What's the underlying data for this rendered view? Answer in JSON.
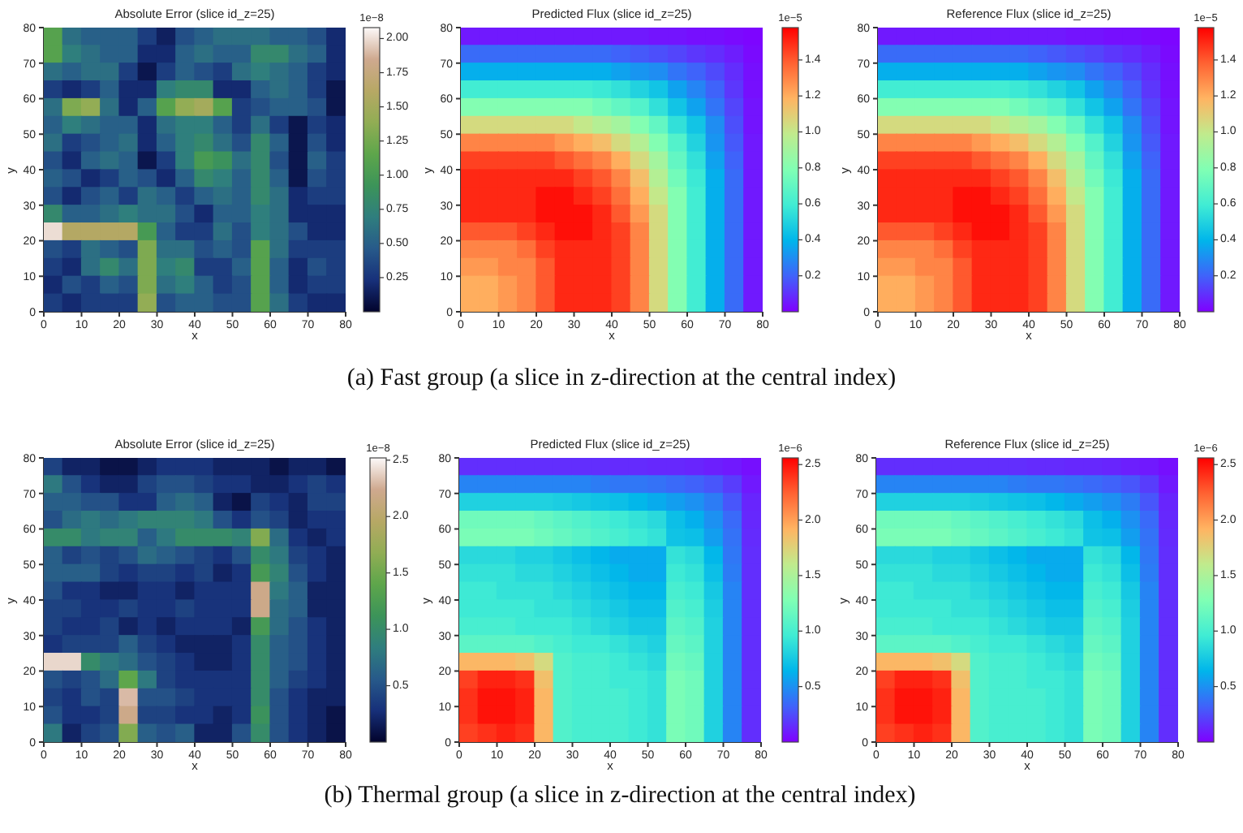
{
  "chart_data": [
    {
      "type": "heatmap",
      "title": "Absolute Error (slice id_z=25)",
      "xlabel": "x",
      "ylabel": "y",
      "xlim": [
        0,
        80
      ],
      "ylim": [
        0,
        80
      ],
      "xticks": [
        0,
        10,
        20,
        30,
        40,
        50,
        60,
        70,
        80
      ],
      "yticks": [
        0,
        10,
        20,
        30,
        40,
        50,
        60,
        70,
        80
      ],
      "clabel": "1e−8",
      "clim": [
        0,
        2.08
      ],
      "cticks": [
        0.25,
        {
          "value": 0.5,
          "label": "0.50"
        },
        0.75,
        {
          "value": 1,
          "label": "1.00"
        },
        1.25,
        {
          "value": 1.5,
          "label": "1.50"
        },
        1.75,
        {
          "value": 2,
          "label": "2.00"
        }
      ],
      "colors": [
        "#02032c",
        "#17307a",
        "#275a8a",
        "#2f7e7e",
        "#3c9459",
        "#5ea64b",
        "#91ad54",
        "#b7a865",
        "#cfa98f",
        "#fcf9f9"
      ],
      "cells": [
        [
          1.1,
          0.6,
          0.5,
          0.5,
          0.5,
          0.3,
          0.15,
          0.4,
          0.5,
          0.6,
          0.6,
          0.6,
          0.5,
          0.5,
          0.4,
          0.2
        ],
        [
          1.1,
          0.7,
          0.6,
          0.5,
          0.5,
          0.2,
          0.2,
          0.5,
          0.6,
          0.5,
          0.5,
          0.8,
          0.8,
          0.6,
          0.5,
          0.2
        ],
        [
          0.6,
          0.5,
          0.6,
          0.6,
          0.3,
          0.1,
          0.3,
          0.5,
          0.4,
          0.3,
          0.6,
          0.7,
          0.6,
          0.5,
          0.3,
          0.2
        ],
        [
          0.3,
          0.2,
          0.3,
          0.5,
          0.2,
          0.2,
          0.7,
          0.8,
          0.8,
          0.2,
          0.2,
          0.5,
          0.6,
          0.5,
          0.3,
          0.1
        ],
        [
          0.6,
          1.3,
          1.4,
          0.6,
          0.2,
          0.5,
          1.1,
          1.4,
          1.5,
          1.1,
          0.3,
          0.4,
          0.5,
          0.5,
          0.4,
          0.1
        ],
        [
          0.5,
          0.7,
          0.6,
          0.5,
          0.5,
          0.2,
          0.6,
          0.7,
          0.7,
          0.5,
          0.3,
          0.6,
          0.3,
          0.1,
          0.3,
          0.2
        ],
        [
          0.6,
          0.3,
          0.4,
          0.5,
          0.6,
          0.2,
          0.5,
          0.7,
          0.8,
          0.6,
          0.4,
          0.8,
          0.5,
          0.1,
          0.4,
          0.2
        ],
        [
          0.4,
          0.2,
          0.5,
          0.6,
          0.5,
          0.1,
          0.3,
          0.7,
          1.0,
          0.9,
          0.6,
          0.8,
          0.4,
          0.1,
          0.5,
          0.3
        ],
        [
          0.5,
          0.4,
          0.2,
          0.3,
          0.5,
          0.4,
          0.2,
          0.5,
          0.8,
          0.7,
          0.5,
          0.8,
          0.5,
          0.1,
          0.4,
          0.3
        ],
        [
          0.4,
          0.2,
          0.4,
          0.5,
          0.3,
          0.6,
          0.5,
          0.3,
          0.5,
          0.6,
          0.5,
          0.8,
          0.6,
          0.2,
          0.3,
          0.3
        ],
        [
          0.8,
          0.5,
          0.5,
          0.6,
          0.7,
          0.6,
          0.6,
          0.4,
          0.2,
          0.5,
          0.5,
          0.7,
          0.6,
          0.2,
          0.2,
          0.2
        ],
        [
          2.0,
          1.6,
          1.6,
          1.6,
          1.6,
          1.0,
          0.5,
          0.3,
          0.3,
          0.6,
          0.4,
          0.7,
          0.6,
          0.4,
          0.2,
          0.2
        ],
        [
          0.4,
          0.3,
          0.6,
          0.5,
          0.4,
          1.3,
          0.6,
          0.6,
          0.4,
          0.5,
          0.4,
          1.1,
          0.6,
          0.3,
          0.3,
          0.3
        ],
        [
          0.3,
          0.2,
          0.6,
          0.8,
          0.6,
          1.3,
          0.7,
          0.8,
          0.3,
          0.3,
          0.5,
          1.1,
          0.5,
          0.2,
          0.4,
          0.3
        ],
        [
          0.2,
          0.4,
          0.3,
          0.5,
          0.4,
          1.3,
          0.6,
          0.7,
          0.5,
          0.3,
          0.4,
          1.1,
          0.5,
          0.2,
          0.3,
          0.3
        ],
        [
          0.3,
          0.2,
          0.3,
          0.3,
          0.3,
          1.4,
          0.4,
          0.5,
          0.5,
          0.4,
          0.4,
          1.1,
          0.6,
          0.3,
          0.2,
          0.2
        ]
      ]
    },
    {
      "type": "heatmap",
      "title": "Predicted Flux (slice id_z=25)",
      "xlabel": "x",
      "ylabel": "y",
      "xlim": [
        0,
        80
      ],
      "ylim": [
        0,
        80
      ],
      "xticks": [
        0,
        10,
        20,
        30,
        40,
        50,
        60,
        70,
        80
      ],
      "yticks": [
        0,
        10,
        20,
        30,
        40,
        50,
        60,
        70,
        80
      ],
      "clabel": "1e−5",
      "clim": [
        0,
        1.58
      ],
      "cticks": [
        0.2,
        0.4,
        0.6,
        0.8,
        {
          "value": 1,
          "label": "1.0"
        },
        1.2,
        1.4
      ],
      "colors": [
        "#8000ff",
        "#4062fa",
        "#00b5eb",
        "#40ecd4",
        "#80ffb4",
        "#c0eb8d",
        "#ffb462",
        "#ff6232",
        "#ff0000"
      ],
      "annotations": [
        "(a) Fast group (a slice in z-direction at the central index)"
      ],
      "cells": [
        [
          0.05,
          0.05,
          0.05,
          0.05,
          0.05,
          0.05,
          0.05,
          0.05,
          0.05,
          0.05,
          0.04,
          0.04,
          0.03,
          0.03,
          0.02,
          0.01
        ],
        [
          0.22,
          0.22,
          0.22,
          0.22,
          0.22,
          0.22,
          0.22,
          0.22,
          0.2,
          0.18,
          0.16,
          0.14,
          0.11,
          0.09,
          0.06,
          0.02
        ],
        [
          0.38,
          0.38,
          0.38,
          0.38,
          0.38,
          0.38,
          0.38,
          0.38,
          0.35,
          0.32,
          0.3,
          0.24,
          0.2,
          0.15,
          0.09,
          0.03
        ],
        [
          0.6,
          0.6,
          0.6,
          0.6,
          0.6,
          0.6,
          0.6,
          0.58,
          0.55,
          0.5,
          0.45,
          0.35,
          0.28,
          0.2,
          0.11,
          0.03
        ],
        [
          0.8,
          0.8,
          0.8,
          0.8,
          0.8,
          0.8,
          0.8,
          0.75,
          0.7,
          0.65,
          0.55,
          0.45,
          0.35,
          0.24,
          0.14,
          0.04
        ],
        [
          1.05,
          1.05,
          1.05,
          1.05,
          1.05,
          1.05,
          1.0,
          0.95,
          0.9,
          0.8,
          0.7,
          0.55,
          0.45,
          0.3,
          0.16,
          0.04
        ],
        [
          1.3,
          1.3,
          1.3,
          1.3,
          1.3,
          1.25,
          1.2,
          1.15,
          1.05,
          0.95,
          0.8,
          0.65,
          0.5,
          0.32,
          0.18,
          0.05
        ],
        [
          1.45,
          1.45,
          1.45,
          1.45,
          1.45,
          1.4,
          1.35,
          1.3,
          1.2,
          1.05,
          0.9,
          0.7,
          0.55,
          0.35,
          0.2,
          0.05
        ],
        [
          1.5,
          1.5,
          1.5,
          1.5,
          1.5,
          1.5,
          1.45,
          1.4,
          1.3,
          1.15,
          0.95,
          0.75,
          0.58,
          0.38,
          0.22,
          0.05
        ],
        [
          1.5,
          1.5,
          1.5,
          1.5,
          1.55,
          1.55,
          1.5,
          1.45,
          1.35,
          1.2,
          1.0,
          0.8,
          0.6,
          0.38,
          0.22,
          0.05
        ],
        [
          1.5,
          1.5,
          1.5,
          1.5,
          1.55,
          1.55,
          1.55,
          1.5,
          1.4,
          1.25,
          1.05,
          0.8,
          0.6,
          0.38,
          0.22,
          0.05
        ],
        [
          1.4,
          1.4,
          1.4,
          1.45,
          1.5,
          1.55,
          1.55,
          1.5,
          1.45,
          1.3,
          1.05,
          0.8,
          0.6,
          0.38,
          0.22,
          0.05
        ],
        [
          1.3,
          1.3,
          1.3,
          1.35,
          1.45,
          1.5,
          1.5,
          1.5,
          1.45,
          1.3,
          1.05,
          0.8,
          0.6,
          0.38,
          0.22,
          0.05
        ],
        [
          1.25,
          1.25,
          1.3,
          1.3,
          1.4,
          1.5,
          1.5,
          1.5,
          1.45,
          1.3,
          1.05,
          0.8,
          0.6,
          0.38,
          0.22,
          0.05
        ],
        [
          1.2,
          1.2,
          1.25,
          1.3,
          1.4,
          1.5,
          1.5,
          1.5,
          1.45,
          1.3,
          1.05,
          0.8,
          0.6,
          0.38,
          0.22,
          0.05
        ],
        [
          1.2,
          1.2,
          1.25,
          1.3,
          1.4,
          1.5,
          1.5,
          1.5,
          1.45,
          1.3,
          1.05,
          0.8,
          0.6,
          0.38,
          0.22,
          0.05
        ]
      ]
    },
    {
      "type": "heatmap",
      "title": "Reference Flux (slice id_z=25)",
      "xlabel": "x",
      "ylabel": "y",
      "xlim": [
        0,
        80
      ],
      "ylim": [
        0,
        80
      ],
      "xticks": [
        0,
        10,
        20,
        30,
        40,
        50,
        60,
        70,
        80
      ],
      "yticks": [
        0,
        10,
        20,
        30,
        40,
        50,
        60,
        70,
        80
      ],
      "clabel": "1e−5",
      "clim": [
        0,
        1.58
      ],
      "cticks": [
        0.2,
        0.4,
        0.6,
        0.8,
        {
          "value": 1,
          "label": "1.0"
        },
        1.2,
        1.4
      ],
      "colors": [
        "#8000ff",
        "#4062fa",
        "#00b5eb",
        "#40ecd4",
        "#80ffb4",
        "#c0eb8d",
        "#ffb462",
        "#ff6232",
        "#ff0000"
      ],
      "cells": [
        [
          0.05,
          0.05,
          0.05,
          0.05,
          0.05,
          0.05,
          0.05,
          0.05,
          0.05,
          0.05,
          0.04,
          0.04,
          0.03,
          0.03,
          0.02,
          0.01
        ],
        [
          0.22,
          0.22,
          0.22,
          0.22,
          0.22,
          0.22,
          0.22,
          0.22,
          0.2,
          0.18,
          0.16,
          0.14,
          0.11,
          0.09,
          0.06,
          0.02
        ],
        [
          0.38,
          0.38,
          0.38,
          0.38,
          0.38,
          0.38,
          0.38,
          0.38,
          0.35,
          0.32,
          0.3,
          0.24,
          0.2,
          0.15,
          0.09,
          0.03
        ],
        [
          0.6,
          0.6,
          0.6,
          0.6,
          0.6,
          0.6,
          0.6,
          0.58,
          0.55,
          0.5,
          0.45,
          0.35,
          0.28,
          0.2,
          0.11,
          0.03
        ],
        [
          0.8,
          0.8,
          0.8,
          0.8,
          0.8,
          0.8,
          0.8,
          0.75,
          0.7,
          0.65,
          0.55,
          0.45,
          0.35,
          0.24,
          0.14,
          0.04
        ],
        [
          1.05,
          1.05,
          1.05,
          1.05,
          1.05,
          1.05,
          1.0,
          0.95,
          0.9,
          0.8,
          0.7,
          0.55,
          0.45,
          0.3,
          0.16,
          0.04
        ],
        [
          1.3,
          1.3,
          1.3,
          1.3,
          1.3,
          1.25,
          1.2,
          1.15,
          1.05,
          0.95,
          0.8,
          0.65,
          0.5,
          0.32,
          0.18,
          0.05
        ],
        [
          1.45,
          1.45,
          1.45,
          1.45,
          1.45,
          1.4,
          1.35,
          1.3,
          1.2,
          1.05,
          0.9,
          0.7,
          0.55,
          0.35,
          0.2,
          0.05
        ],
        [
          1.5,
          1.5,
          1.5,
          1.5,
          1.5,
          1.5,
          1.45,
          1.4,
          1.3,
          1.15,
          0.95,
          0.75,
          0.58,
          0.38,
          0.22,
          0.05
        ],
        [
          1.5,
          1.5,
          1.5,
          1.5,
          1.55,
          1.55,
          1.5,
          1.45,
          1.35,
          1.2,
          1.0,
          0.8,
          0.6,
          0.38,
          0.22,
          0.05
        ],
        [
          1.5,
          1.5,
          1.5,
          1.5,
          1.55,
          1.55,
          1.55,
          1.5,
          1.4,
          1.25,
          1.05,
          0.8,
          0.6,
          0.38,
          0.22,
          0.05
        ],
        [
          1.4,
          1.4,
          1.4,
          1.45,
          1.5,
          1.55,
          1.55,
          1.5,
          1.45,
          1.3,
          1.05,
          0.8,
          0.6,
          0.38,
          0.22,
          0.05
        ],
        [
          1.3,
          1.3,
          1.3,
          1.35,
          1.45,
          1.5,
          1.5,
          1.5,
          1.45,
          1.3,
          1.05,
          0.8,
          0.6,
          0.38,
          0.22,
          0.05
        ],
        [
          1.25,
          1.25,
          1.3,
          1.3,
          1.4,
          1.5,
          1.5,
          1.5,
          1.45,
          1.3,
          1.05,
          0.8,
          0.6,
          0.38,
          0.22,
          0.05
        ],
        [
          1.2,
          1.2,
          1.25,
          1.3,
          1.4,
          1.5,
          1.5,
          1.5,
          1.45,
          1.3,
          1.05,
          0.8,
          0.6,
          0.38,
          0.22,
          0.05
        ],
        [
          1.2,
          1.2,
          1.25,
          1.3,
          1.4,
          1.5,
          1.5,
          1.5,
          1.45,
          1.3,
          1.05,
          0.8,
          0.6,
          0.38,
          0.22,
          0.05
        ]
      ]
    },
    {
      "type": "heatmap",
      "title": "Absolute Error (slice id_z=25)",
      "xlabel": "x",
      "ylabel": "y",
      "xlim": [
        0,
        80
      ],
      "ylim": [
        0,
        80
      ],
      "xticks": [
        0,
        10,
        20,
        30,
        40,
        50,
        60,
        70,
        80
      ],
      "yticks": [
        0,
        10,
        20,
        30,
        40,
        50,
        60,
        70,
        80
      ],
      "clabel": "1e−8",
      "clim": [
        0,
        2.52
      ],
      "cticks": [
        0.5,
        {
          "value": 1,
          "label": "1.0"
        },
        1.5,
        {
          "value": 2,
          "label": "2.0"
        },
        2.5
      ],
      "colors": [
        "#02032c",
        "#17307a",
        "#275a8a",
        "#2f7e7e",
        "#3c9459",
        "#5ea64b",
        "#91ad54",
        "#b7a865",
        "#cfa98f",
        "#fcf9f9"
      ],
      "cells": [
        [
          0.4,
          0.2,
          0.2,
          0.1,
          0.1,
          0.2,
          0.3,
          0.3,
          0.3,
          0.2,
          0.2,
          0.2,
          0.1,
          0.2,
          0.2,
          0.1
        ],
        [
          0.8,
          0.5,
          0.3,
          0.2,
          0.2,
          0.4,
          0.5,
          0.5,
          0.4,
          0.3,
          0.3,
          0.2,
          0.2,
          0.3,
          0.4,
          0.3
        ],
        [
          0.6,
          0.6,
          0.5,
          0.5,
          0.3,
          0.3,
          0.6,
          0.7,
          0.6,
          0.2,
          0.1,
          0.4,
          0.3,
          0.2,
          0.4,
          0.4
        ],
        [
          0.5,
          0.7,
          0.8,
          0.7,
          0.8,
          0.9,
          0.9,
          0.9,
          0.8,
          0.5,
          0.3,
          0.5,
          0.4,
          0.2,
          0.3,
          0.3
        ],
        [
          1.0,
          1.0,
          0.8,
          0.9,
          0.9,
          0.6,
          0.8,
          1.0,
          1.0,
          1.0,
          0.9,
          1.6,
          0.7,
          0.3,
          0.2,
          0.3
        ],
        [
          0.6,
          0.4,
          0.5,
          0.4,
          0.5,
          0.7,
          0.6,
          0.5,
          0.4,
          0.3,
          0.5,
          1.0,
          0.8,
          0.4,
          0.3,
          0.2
        ],
        [
          0.6,
          0.6,
          0.6,
          0.4,
          0.3,
          0.4,
          0.4,
          0.3,
          0.4,
          0.2,
          0.3,
          1.2,
          0.9,
          0.5,
          0.3,
          0.2
        ],
        [
          0.5,
          0.3,
          0.3,
          0.2,
          0.2,
          0.3,
          0.3,
          0.2,
          0.3,
          0.3,
          0.3,
          2.2,
          0.8,
          0.6,
          0.2,
          0.2
        ],
        [
          0.4,
          0.4,
          0.3,
          0.3,
          0.4,
          0.3,
          0.3,
          0.4,
          0.3,
          0.3,
          0.3,
          2.2,
          0.7,
          0.6,
          0.2,
          0.2
        ],
        [
          0.4,
          0.3,
          0.3,
          0.4,
          0.2,
          0.3,
          0.2,
          0.3,
          0.3,
          0.3,
          0.2,
          1.2,
          0.7,
          0.5,
          0.3,
          0.2
        ],
        [
          0.3,
          0.4,
          0.4,
          0.4,
          0.6,
          0.4,
          0.3,
          0.2,
          0.2,
          0.2,
          0.3,
          1.0,
          0.6,
          0.5,
          0.3,
          0.2
        ],
        [
          2.4,
          2.4,
          1.0,
          0.8,
          0.7,
          0.5,
          0.4,
          0.3,
          0.2,
          0.2,
          0.3,
          1.0,
          0.6,
          0.5,
          0.3,
          0.2
        ],
        [
          0.5,
          0.4,
          0.5,
          0.7,
          1.4,
          0.8,
          0.4,
          0.3,
          0.3,
          0.3,
          0.3,
          1.0,
          0.6,
          0.4,
          0.3,
          0.2
        ],
        [
          0.4,
          0.3,
          0.5,
          0.4,
          2.3,
          0.5,
          0.5,
          0.4,
          0.3,
          0.3,
          0.3,
          1.0,
          0.5,
          0.3,
          0.2,
          0.2
        ],
        [
          0.5,
          0.3,
          0.3,
          0.4,
          2.2,
          0.4,
          0.4,
          0.3,
          0.3,
          0.2,
          0.3,
          1.1,
          0.5,
          0.3,
          0.2,
          0.1
        ],
        [
          0.8,
          0.2,
          0.4,
          0.5,
          1.6,
          0.6,
          0.5,
          0.6,
          0.2,
          0.2,
          0.5,
          1.0,
          0.5,
          0.3,
          0.2,
          0.1
        ]
      ]
    },
    {
      "type": "heatmap",
      "title": "Predicted Flux (slice id_z=25)",
      "xlabel": "x",
      "ylabel": "y",
      "xlim": [
        0,
        80
      ],
      "ylim": [
        0,
        80
      ],
      "xticks": [
        0,
        10,
        20,
        30,
        40,
        50,
        60,
        70,
        80
      ],
      "yticks": [
        0,
        10,
        20,
        30,
        40,
        50,
        60,
        70,
        80
      ],
      "clabel": "1e−6",
      "clim": [
        0,
        2.56
      ],
      "cticks": [
        0.5,
        {
          "value": 1,
          "label": "1.0"
        },
        1.5,
        {
          "value": 2,
          "label": "2.0"
        },
        2.5
      ],
      "colors": [
        "#8000ff",
        "#4062fa",
        "#00b5eb",
        "#40ecd4",
        "#80ffb4",
        "#c0eb8d",
        "#ffb462",
        "#ff6232",
        "#ff0000"
      ],
      "annotations": [
        "(b) Thermal group (a slice in z-direction at the central index)"
      ],
      "cells": [
        [
          0.15,
          0.15,
          0.15,
          0.15,
          0.15,
          0.15,
          0.15,
          0.15,
          0.14,
          0.14,
          0.13,
          0.13,
          0.12,
          0.1,
          0.08,
          0.05
        ],
        [
          0.45,
          0.45,
          0.45,
          0.45,
          0.45,
          0.45,
          0.45,
          0.42,
          0.4,
          0.4,
          0.38,
          0.35,
          0.32,
          0.28,
          0.2,
          0.08
        ],
        [
          0.8,
          0.8,
          0.8,
          0.8,
          0.8,
          0.78,
          0.75,
          0.72,
          0.7,
          0.65,
          0.6,
          0.55,
          0.5,
          0.42,
          0.28,
          0.12
        ],
        [
          1.2,
          1.2,
          1.2,
          1.2,
          1.15,
          1.1,
          1.05,
          1.0,
          0.95,
          0.9,
          0.85,
          0.7,
          0.62,
          0.5,
          0.35,
          0.13
        ],
        [
          1.25,
          1.25,
          1.25,
          1.25,
          1.2,
          1.15,
          1.1,
          1.05,
          1.0,
          0.95,
          0.9,
          0.72,
          0.7,
          0.55,
          0.38,
          0.14
        ],
        [
          0.85,
          0.85,
          0.85,
          0.8,
          0.8,
          0.75,
          0.7,
          0.65,
          0.6,
          0.6,
          0.6,
          0.9,
          0.85,
          0.65,
          0.4,
          0.15
        ],
        [
          0.9,
          0.9,
          0.9,
          0.85,
          0.85,
          0.8,
          0.75,
          0.7,
          0.65,
          0.6,
          0.6,
          0.95,
          0.9,
          0.7,
          0.42,
          0.15
        ],
        [
          0.95,
          0.95,
          0.9,
          0.9,
          0.9,
          0.85,
          0.8,
          0.75,
          0.7,
          0.65,
          0.65,
          1.0,
          0.95,
          0.75,
          0.45,
          0.15
        ],
        [
          0.95,
          0.95,
          0.95,
          0.95,
          0.9,
          0.9,
          0.85,
          0.8,
          0.75,
          0.7,
          0.7,
          1.05,
          1.0,
          0.78,
          0.45,
          0.15
        ],
        [
          1.0,
          1.0,
          1.0,
          0.95,
          0.95,
          0.95,
          0.9,
          0.85,
          0.8,
          0.75,
          0.75,
          1.1,
          1.05,
          0.8,
          0.45,
          0.15
        ],
        [
          1.1,
          1.1,
          1.1,
          1.1,
          1.05,
          1.0,
          0.95,
          0.95,
          0.9,
          0.85,
          0.8,
          1.15,
          1.1,
          0.8,
          0.45,
          0.15
        ],
        [
          1.9,
          1.9,
          1.9,
          1.85,
          1.7,
          1.05,
          1.0,
          1.0,
          0.95,
          0.9,
          0.85,
          1.2,
          1.15,
          0.8,
          0.45,
          0.15
        ],
        [
          2.35,
          2.45,
          2.45,
          2.4,
          1.85,
          1.05,
          1.0,
          1.0,
          0.95,
          0.95,
          0.9,
          1.25,
          1.2,
          0.8,
          0.45,
          0.15
        ],
        [
          2.4,
          2.5,
          2.5,
          2.45,
          1.9,
          1.05,
          1.0,
          1.0,
          1.0,
          0.95,
          0.9,
          1.25,
          1.2,
          0.8,
          0.45,
          0.15
        ],
        [
          2.4,
          2.5,
          2.5,
          2.45,
          1.9,
          1.05,
          1.0,
          1.0,
          1.0,
          0.95,
          0.9,
          1.25,
          1.2,
          0.8,
          0.45,
          0.15
        ],
        [
          2.35,
          2.4,
          2.45,
          2.4,
          1.9,
          1.05,
          1.0,
          1.0,
          1.0,
          0.95,
          0.9,
          1.25,
          1.2,
          0.8,
          0.45,
          0.15
        ]
      ]
    },
    {
      "type": "heatmap",
      "title": "Reference Flux (slice id_z=25)",
      "xlabel": "x",
      "ylabel": "y",
      "xlim": [
        0,
        80
      ],
      "ylim": [
        0,
        80
      ],
      "xticks": [
        0,
        10,
        20,
        30,
        40,
        50,
        60,
        70,
        80
      ],
      "yticks": [
        0,
        10,
        20,
        30,
        40,
        50,
        60,
        70,
        80
      ],
      "clabel": "1e−6",
      "clim": [
        0,
        2.56
      ],
      "cticks": [
        0.5,
        {
          "value": 1,
          "label": "1.0"
        },
        1.5,
        {
          "value": 2,
          "label": "2.0"
        },
        2.5
      ],
      "colors": [
        "#8000ff",
        "#4062fa",
        "#00b5eb",
        "#40ecd4",
        "#80ffb4",
        "#c0eb8d",
        "#ffb462",
        "#ff6232",
        "#ff0000"
      ],
      "cells": [
        [
          0.15,
          0.15,
          0.15,
          0.15,
          0.15,
          0.15,
          0.15,
          0.15,
          0.14,
          0.14,
          0.13,
          0.13,
          0.12,
          0.1,
          0.08,
          0.05
        ],
        [
          0.45,
          0.45,
          0.45,
          0.45,
          0.45,
          0.45,
          0.45,
          0.42,
          0.4,
          0.4,
          0.38,
          0.35,
          0.32,
          0.28,
          0.2,
          0.08
        ],
        [
          0.8,
          0.8,
          0.8,
          0.8,
          0.8,
          0.78,
          0.75,
          0.72,
          0.7,
          0.65,
          0.6,
          0.55,
          0.5,
          0.42,
          0.28,
          0.12
        ],
        [
          1.2,
          1.2,
          1.2,
          1.2,
          1.15,
          1.1,
          1.05,
          1.0,
          0.95,
          0.9,
          0.85,
          0.7,
          0.62,
          0.5,
          0.35,
          0.13
        ],
        [
          1.25,
          1.25,
          1.25,
          1.25,
          1.2,
          1.15,
          1.1,
          1.05,
          1.0,
          0.95,
          0.9,
          0.72,
          0.7,
          0.55,
          0.38,
          0.14
        ],
        [
          0.85,
          0.85,
          0.85,
          0.8,
          0.8,
          0.75,
          0.7,
          0.65,
          0.6,
          0.6,
          0.6,
          0.9,
          0.85,
          0.65,
          0.4,
          0.15
        ],
        [
          0.9,
          0.9,
          0.9,
          0.85,
          0.85,
          0.8,
          0.75,
          0.7,
          0.65,
          0.6,
          0.6,
          0.95,
          0.9,
          0.7,
          0.42,
          0.15
        ],
        [
          0.95,
          0.95,
          0.9,
          0.9,
          0.9,
          0.85,
          0.8,
          0.75,
          0.7,
          0.65,
          0.65,
          1.0,
          0.95,
          0.75,
          0.45,
          0.15
        ],
        [
          0.95,
          0.95,
          0.95,
          0.95,
          0.9,
          0.9,
          0.85,
          0.8,
          0.75,
          0.7,
          0.7,
          1.05,
          1.0,
          0.78,
          0.45,
          0.15
        ],
        [
          1.0,
          1.0,
          1.0,
          0.95,
          0.95,
          0.95,
          0.9,
          0.85,
          0.8,
          0.75,
          0.75,
          1.1,
          1.05,
          0.8,
          0.45,
          0.15
        ],
        [
          1.1,
          1.1,
          1.1,
          1.1,
          1.05,
          1.0,
          0.95,
          0.95,
          0.9,
          0.85,
          0.8,
          1.15,
          1.1,
          0.8,
          0.45,
          0.15
        ],
        [
          1.9,
          1.9,
          1.9,
          1.85,
          1.7,
          1.05,
          1.0,
          1.0,
          0.95,
          0.9,
          0.85,
          1.2,
          1.15,
          0.8,
          0.45,
          0.15
        ],
        [
          2.35,
          2.45,
          2.45,
          2.4,
          1.85,
          1.05,
          1.0,
          1.0,
          0.95,
          0.95,
          0.9,
          1.25,
          1.2,
          0.8,
          0.45,
          0.15
        ],
        [
          2.4,
          2.5,
          2.5,
          2.45,
          1.9,
          1.05,
          1.0,
          1.0,
          1.0,
          0.95,
          0.9,
          1.25,
          1.2,
          0.8,
          0.45,
          0.15
        ],
        [
          2.4,
          2.5,
          2.5,
          2.45,
          1.9,
          1.05,
          1.0,
          1.0,
          1.0,
          0.95,
          0.9,
          1.25,
          1.2,
          0.8,
          0.45,
          0.15
        ],
        [
          2.35,
          2.4,
          2.45,
          2.4,
          1.9,
          1.05,
          1.0,
          1.0,
          1.0,
          0.95,
          0.9,
          1.25,
          1.2,
          0.8,
          0.45,
          0.15
        ]
      ]
    }
  ]
}
